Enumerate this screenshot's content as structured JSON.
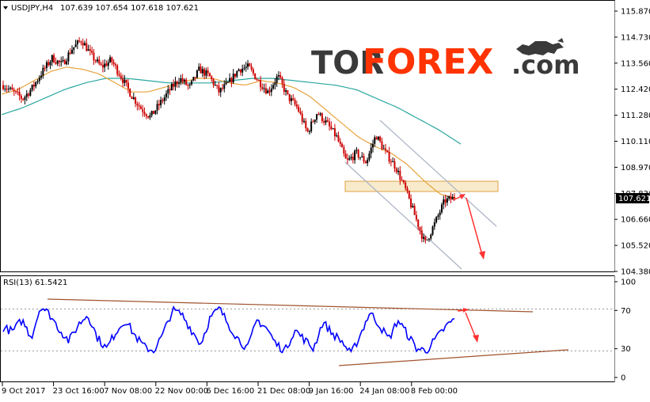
{
  "header": {
    "symbol_timeframe": "USDJPY,H4",
    "ohlc": "107.639 107.654 107.618 107.621"
  },
  "brand": {
    "part1": "TOR",
    "part2": "FOREX",
    "part3": ".com",
    "color1": "#3a3a3a",
    "color2": "#ff3300"
  },
  "price_panel": {
    "y_ticks": [
      "115.870",
      "114.730",
      "113.560",
      "112.420",
      "111.280",
      "110.110",
      "108.970",
      "107.830",
      "106.660",
      "105.520",
      "104.380"
    ],
    "current_price_label": "107.621"
  },
  "rsi_panel": {
    "label": "RSI(13) 61.5421",
    "y_ticks": [
      "100",
      "70",
      "30",
      "0"
    ]
  },
  "x_axis": {
    "tick_labels": [
      "9 Oct 2017",
      "23 Oct 16:00",
      "7 Nov 08:00",
      "22 Nov 00:00",
      "6 Dec 16:00",
      "21 Dec 08:00",
      "9 Jan 16:00",
      "24 Jan 08:00",
      "8 Feb 00:00"
    ]
  },
  "colors": {
    "bull": "#000000",
    "bear": "#cc0000",
    "ma_fast": "#e8a33d",
    "ma_slow": "#2aa7a0",
    "rsi_line": "#0000ff",
    "trend_rsi": "#a0522d",
    "arrow": "#ff3333",
    "channel": "#a9b3c3",
    "zone_fill": "#f7e7c2",
    "zone_stroke": "#e0a040"
  },
  "chart_data": [
    {
      "type": "candlestick",
      "title": "USDJPY,H4",
      "ylim": [
        104.38,
        115.87
      ],
      "x_labels": [
        "9 Oct 2017",
        "23 Oct 16:00",
        "7 Nov 08:00",
        "22 Nov 00:00",
        "6 Dec 16:00",
        "21 Dec 08:00",
        "9 Jan 16:00",
        "24 Jan 08:00",
        "8 Feb 00:00"
      ],
      "close_path": [
        112.6,
        112.3,
        112.0,
        112.5,
        113.2,
        113.8,
        113.5,
        114.2,
        114.6,
        113.9,
        113.4,
        113.7,
        113.0,
        112.2,
        111.6,
        111.2,
        111.8,
        112.4,
        112.9,
        112.5,
        113.3,
        113.0,
        112.3,
        112.7,
        113.3,
        113.4,
        112.8,
        112.3,
        113.0,
        112.1,
        111.6,
        110.5,
        111.4,
        110.9,
        110.3,
        109.2,
        109.6,
        109.2,
        110.4,
        109.6,
        109.0,
        108.0,
        106.8,
        105.6,
        106.5,
        107.5,
        107.62
      ],
      "ma_fast": [
        112.2,
        112.4,
        112.8,
        113.2,
        113.4,
        113.3,
        113.1,
        112.7,
        112.3,
        112.3,
        112.5,
        112.7,
        112.9,
        112.9,
        112.7,
        112.6,
        112.8,
        112.7,
        112.5,
        112.1,
        111.5,
        110.9,
        110.3,
        109.9,
        109.6,
        109.1,
        108.4,
        107.8,
        107.6
      ],
      "ma_slow": [
        111.3,
        111.6,
        112.0,
        112.4,
        112.7,
        112.9,
        112.9,
        112.8,
        112.7,
        112.7,
        112.7,
        112.8,
        112.9,
        112.9,
        112.8,
        112.7,
        112.6,
        112.4,
        112.0,
        111.6,
        111.1,
        110.6,
        110.0
      ]
    },
    {
      "type": "line",
      "title": "RSI(13) 61.5421",
      "ylim": [
        0,
        100
      ],
      "levels": [
        70,
        30
      ],
      "values": [
        52,
        48,
        60,
        42,
        75,
        65,
        50,
        38,
        55,
        66,
        42,
        30,
        48,
        60,
        44,
        32,
        28,
        45,
        70,
        66,
        50,
        35,
        62,
        72,
        55,
        40,
        30,
        60,
        52,
        35,
        28,
        50,
        40,
        30,
        58,
        46,
        38,
        24,
        45,
        68,
        55,
        40,
        60,
        45,
        30,
        28,
        40,
        52,
        61.5
      ]
    }
  ]
}
